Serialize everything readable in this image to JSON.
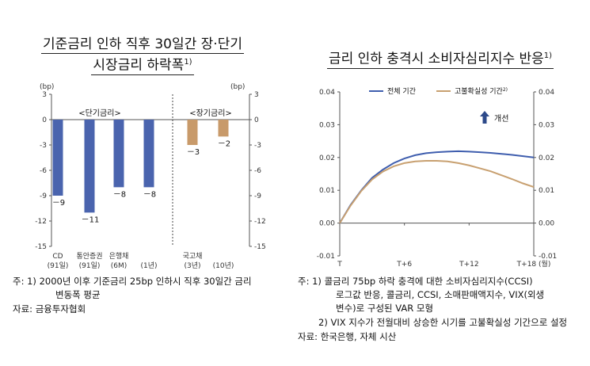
{
  "left_title": {
    "line1": "기준금리 인하 직후 30일간 장·단기",
    "line2": "시장금리 하락폭",
    "sup": "1)"
  },
  "right_title": {
    "text": "금리 인하 충격시 소비자심리지수 반응",
    "sup": "1)"
  },
  "left_notes": {
    "note1_line1": "주: 1) 2000년 이후 기준금리 25bp 인하시 직후 30일간 금리",
    "note1_line2": "변동폭 평균",
    "source": "자료: 금융투자협회"
  },
  "right_notes": {
    "note1_line1": "주: 1) 콜금리 75bp 하락 충격에 대한 소비자심리지수(CCSI)",
    "note1_line2": "로그값 반응, 콜금리, CCSI, 소매판매액지수, VIX(외생",
    "note1_line3": "변수)로 구성된 VAR 모형",
    "note2": "2) VIX 지수가 전월대비 상승한 시기를 고불확실성 기간으로 설정",
    "source": "자료: 한국은행, 자체 시산"
  },
  "chart_data": [
    {
      "type": "bar",
      "unit_left": "(bp)",
      "unit_right": "(bp)",
      "ylim": [
        -15,
        3
      ],
      "yticks": [
        "3",
        "0",
        "-3",
        "-6",
        "-9",
        "-12",
        "-15"
      ],
      "group_labels": [
        "<단기금리>",
        "<장기금리>"
      ],
      "categories": [
        {
          "line1": "CD",
          "line2": "(91일)"
        },
        {
          "line1": "통안증권",
          "line2": "(91일)"
        },
        {
          "line1": "은행채",
          "line2": "(6M)"
        },
        {
          "line1": "",
          "line2": "(1년)"
        },
        {
          "line1": "국고채",
          "line2": "(3년)"
        },
        {
          "line1": "",
          "line2": "(10년)"
        }
      ],
      "values": [
        -9,
        -11,
        -8,
        -8,
        -3,
        -2
      ],
      "value_labels": [
        "-9",
        "-11",
        "-8",
        "-8",
        "-3",
        "-2"
      ],
      "groups": [
        "short",
        "short",
        "short",
        "short",
        "long",
        "long"
      ],
      "colors": {
        "short": "#4a64ae",
        "long": "#c89a6a"
      }
    },
    {
      "type": "line",
      "ylim": [
        -0.01,
        0.04
      ],
      "yticks": [
        "0.04",
        "0.03",
        "0.02",
        "0.01",
        "0.00",
        "-0.01"
      ],
      "xticks": [
        "T",
        "T+6",
        "T+12",
        "T+18 (월)"
      ],
      "xlim": [
        0,
        18
      ],
      "annotation": "개선",
      "series": [
        {
          "name": "전체 기간",
          "sup": "",
          "color": "#3f5eae",
          "x": [
            0,
            1,
            2,
            3,
            4,
            5,
            6,
            7,
            8,
            9,
            10,
            11,
            12,
            13,
            14,
            15,
            16,
            17,
            18
          ],
          "values": [
            0.0,
            0.0055,
            0.01,
            0.0138,
            0.0163,
            0.0183,
            0.0197,
            0.0207,
            0.0213,
            0.0216,
            0.0218,
            0.0219,
            0.0218,
            0.0216,
            0.0214,
            0.0211,
            0.0208,
            0.0204,
            0.02
          ]
        },
        {
          "name": "고불확실성 기간",
          "sup": "2)",
          "color": "#c8a070",
          "x": [
            0,
            1,
            2,
            3,
            4,
            5,
            6,
            7,
            8,
            9,
            10,
            11,
            12,
            13,
            14,
            15,
            16,
            17,
            18
          ],
          "values": [
            0.0,
            0.0053,
            0.0098,
            0.0133,
            0.0157,
            0.0173,
            0.0183,
            0.0188,
            0.019,
            0.019,
            0.0188,
            0.0183,
            0.0176,
            0.0167,
            0.0158,
            0.0146,
            0.0134,
            0.0121,
            0.011
          ]
        }
      ]
    }
  ]
}
